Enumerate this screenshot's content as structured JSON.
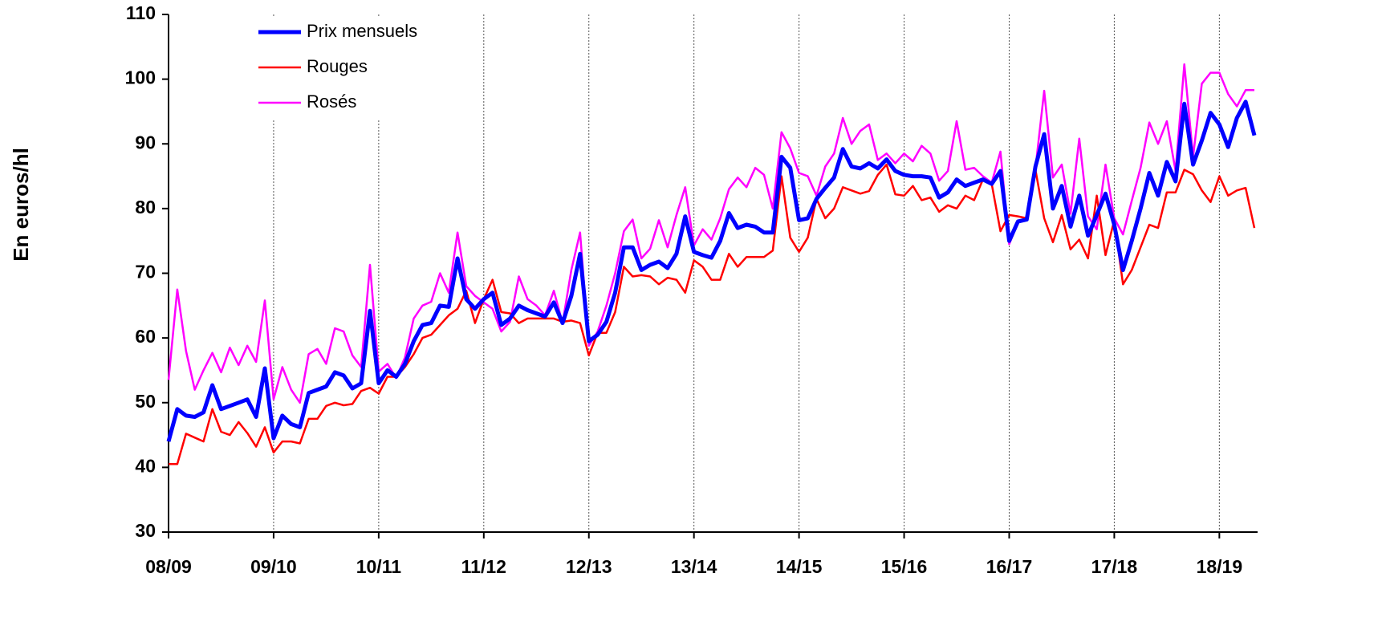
{
  "chart_data": {
    "type": "line",
    "y_label": "En euros/hl",
    "categories": [
      "08/09",
      null,
      null,
      null,
      null,
      null,
      null,
      null,
      null,
      null,
      null,
      null,
      "09/10",
      null,
      null,
      null,
      null,
      null,
      null,
      null,
      null,
      null,
      null,
      null,
      "10/11",
      null,
      null,
      null,
      null,
      null,
      null,
      null,
      null,
      null,
      null,
      null,
      "11/12",
      null,
      null,
      null,
      null,
      null,
      null,
      null,
      null,
      null,
      null,
      null,
      "12/13",
      null,
      null,
      null,
      null,
      null,
      null,
      null,
      null,
      null,
      null,
      null,
      "13/14",
      null,
      null,
      null,
      null,
      null,
      null,
      null,
      null,
      null,
      null,
      null,
      "14/15",
      null,
      null,
      null,
      null,
      null,
      null,
      null,
      null,
      null,
      null,
      null,
      "15/16",
      null,
      null,
      null,
      null,
      null,
      null,
      null,
      null,
      null,
      null,
      null,
      "16/17",
      null,
      null,
      null,
      null,
      null,
      null,
      null,
      null,
      null,
      null,
      null,
      "17/18",
      null,
      null,
      null,
      null,
      null,
      null,
      null,
      null,
      null,
      null,
      null,
      "18/19",
      null,
      null,
      null,
      null
    ],
    "series": [
      {
        "name": "Prix mensuels",
        "color": "#0000ff",
        "values": [
          44,
          49,
          48,
          47.8,
          48.5,
          52.7,
          49,
          49.5,
          50,
          50.5,
          47.8,
          55.3,
          44.5,
          48,
          46.7,
          46.2,
          51.5,
          52,
          52.5,
          54.7,
          54.2,
          52.2,
          53,
          64.2,
          53,
          55,
          54,
          56,
          59.5,
          62,
          62.3,
          65,
          64.8,
          72.3,
          66,
          64.5,
          66,
          67,
          62,
          63,
          65,
          64.3,
          63.8,
          63.3,
          65.5,
          62.3,
          66.5,
          73,
          59.5,
          60.5,
          62.5,
          67,
          74,
          74,
          70.5,
          71.3,
          71.8,
          70.8,
          73,
          78.8,
          73.3,
          72.8,
          72.4,
          75,
          79.3,
          77,
          77.5,
          77.2,
          76.3,
          76.3,
          88,
          86.3,
          78.2,
          78.5,
          81.5,
          83.2,
          84.8,
          89.2,
          86.5,
          86.2,
          87,
          86.2,
          87.6,
          85.8,
          85.2,
          85,
          85,
          84.8,
          81.7,
          82.5,
          84.5,
          83.5,
          84,
          84.5,
          83.8,
          85.8,
          75,
          78,
          78.3,
          86.5,
          91.5,
          80,
          83.5,
          77.2,
          82,
          75.8,
          79,
          82.3,
          77.5,
          70.5,
          75,
          80,
          85.5,
          82,
          87.2,
          84.2,
          96.2,
          86.8,
          90.5,
          94.8,
          93,
          89.5,
          94,
          96.5,
          91.3
        ]
      },
      {
        "name": "Rouges",
        "color": "#ff0000",
        "values": [
          40.5,
          40.5,
          45.2,
          44.6,
          44,
          49,
          45.5,
          45,
          47,
          45.3,
          43.2,
          46.2,
          42.3,
          44,
          44,
          43.7,
          47.5,
          47.5,
          49.5,
          50,
          49.6,
          49.8,
          51.8,
          52.3,
          51.4,
          54,
          54,
          55.5,
          57.5,
          60,
          60.5,
          62,
          63.5,
          64.5,
          67.3,
          62.3,
          66,
          69,
          64,
          63.8,
          62.3,
          63,
          63,
          63,
          63,
          62.5,
          62.7,
          62.3,
          57.3,
          60.8,
          60.8,
          64,
          71,
          69.5,
          69.7,
          69.5,
          68.3,
          69.3,
          69,
          67,
          72,
          71,
          69,
          69,
          73,
          71,
          72.5,
          72.5,
          72.5,
          73.5,
          85,
          75.5,
          73.3,
          75.5,
          81.5,
          78.5,
          80,
          83.3,
          82.8,
          82.3,
          82.7,
          85.2,
          86.8,
          82.2,
          82,
          83.5,
          81.3,
          81.7,
          79.5,
          80.5,
          80,
          82,
          81.3,
          84.5,
          83.8,
          76.5,
          79,
          78.8,
          78.5,
          86,
          78.5,
          74.8,
          79,
          73.7,
          75.2,
          72.3,
          82,
          72.8,
          78.2,
          68.3,
          70.5,
          74,
          77.5,
          77,
          82.5,
          82.5,
          86,
          85.3,
          82.8,
          81,
          85,
          82,
          82.8,
          83.2,
          77
        ]
      },
      {
        "name": "Rosés",
        "color": "#ff00ff",
        "values": [
          53.5,
          67.5,
          58,
          52,
          55,
          57.7,
          54.7,
          58.5,
          55.8,
          58.8,
          56.3,
          65.8,
          50.5,
          55.5,
          52,
          50,
          57.5,
          58.3,
          56,
          61.5,
          61,
          57.3,
          55.5,
          71.3,
          54.8,
          56,
          53.8,
          57,
          63,
          65,
          65.6,
          70,
          67,
          76.3,
          68,
          66.5,
          65.5,
          64.5,
          61,
          62.5,
          69.5,
          66,
          65,
          63.5,
          67.3,
          62.3,
          70.5,
          76.3,
          58.8,
          61,
          65,
          70,
          76.5,
          78.3,
          72.3,
          73.8,
          78.2,
          74,
          79,
          83.3,
          74.3,
          76.8,
          75.2,
          78.5,
          83,
          84.8,
          83.3,
          86.3,
          85.2,
          80,
          91.8,
          89.3,
          85.5,
          85,
          82,
          86.5,
          88.5,
          94,
          90,
          92,
          93,
          87.5,
          88.5,
          87,
          88.5,
          87.3,
          89.7,
          88.5,
          84.3,
          85.8,
          93.5,
          86,
          86.3,
          85,
          84,
          88.8,
          74.5,
          77.8,
          78.5,
          86.2,
          98.2,
          84.8,
          86.8,
          79.2,
          90.8,
          78.8,
          76.8,
          86.8,
          78.5,
          76,
          81.2,
          86.3,
          93.3,
          90,
          93.5,
          85.8,
          102.3,
          88,
          99.3,
          101,
          101,
          97.7,
          95.8,
          98.3,
          98.3
        ]
      }
    ],
    "ylim": [
      30,
      110
    ],
    "yticks": [
      30,
      40,
      50,
      60,
      70,
      80,
      90,
      100,
      110
    ],
    "grid": "x",
    "legend": "upper left"
  }
}
